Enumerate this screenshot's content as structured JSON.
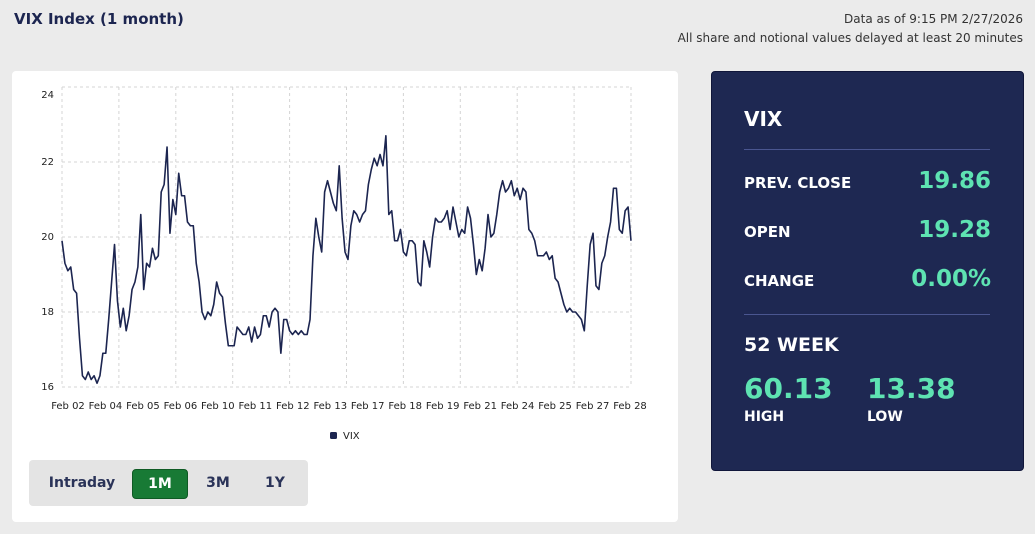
{
  "header": {
    "title": "VIX Index (1 month)",
    "timestamp": "Data as of 9:15 PM 2/27/2026",
    "disclaimer": "All share and notional values delayed at least 20 minutes"
  },
  "chart_data": {
    "type": "line",
    "series": [
      {
        "name": "VIX",
        "color": "#1c2550",
        "values": [
          19.9,
          19.3,
          19.1,
          19.2,
          18.6,
          18.5,
          17.3,
          16.3,
          16.2,
          16.4,
          16.2,
          16.3,
          16.1,
          16.3,
          16.9,
          16.9,
          17.8,
          18.8,
          19.8,
          18.3,
          17.6,
          18.1,
          17.5,
          17.9,
          18.6,
          18.8,
          19.2,
          20.6,
          18.6,
          19.3,
          19.2,
          19.7,
          19.4,
          19.5,
          21.2,
          21.4,
          22.4,
          20.1,
          21.0,
          20.6,
          21.7,
          21.1,
          21.1,
          20.4,
          20.3,
          20.3,
          19.3,
          18.8,
          18.0,
          17.8,
          18.0,
          17.9,
          18.2,
          18.8,
          18.5,
          18.4,
          17.7,
          17.1,
          17.1,
          17.1,
          17.6,
          17.5,
          17.4,
          17.4,
          17.6,
          17.2,
          17.6,
          17.3,
          17.4,
          17.9,
          17.9,
          17.6,
          18.0,
          18.1,
          18.0,
          16.9,
          17.8,
          17.8,
          17.5,
          17.4,
          17.5,
          17.4,
          17.5,
          17.4,
          17.4,
          17.8,
          19.5,
          20.5,
          20.0,
          19.6,
          21.2,
          21.5,
          21.2,
          20.9,
          20.7,
          21.9,
          20.5,
          19.6,
          19.4,
          20.3,
          20.7,
          20.6,
          20.4,
          20.6,
          20.7,
          21.4,
          21.8,
          22.1,
          21.9,
          22.2,
          21.9,
          22.7,
          20.6,
          20.7,
          19.9,
          19.9,
          20.2,
          19.6,
          19.5,
          19.9,
          19.9,
          19.8,
          18.8,
          18.7,
          19.9,
          19.6,
          19.2,
          20.0,
          20.5,
          20.4,
          20.4,
          20.5,
          20.7,
          20.2,
          20.8,
          20.4,
          20.0,
          20.2,
          20.1,
          20.8,
          20.5,
          19.8,
          19.0,
          19.4,
          19.1,
          19.7,
          20.6,
          20.0,
          20.1,
          20.6,
          21.2,
          21.5,
          21.2,
          21.3,
          21.5,
          21.1,
          21.3,
          21.0,
          21.3,
          21.2,
          20.2,
          20.1,
          19.9,
          19.5,
          19.5,
          19.5,
          19.6,
          19.4,
          19.5,
          18.9,
          18.8,
          18.5,
          18.2,
          18.0,
          18.1,
          18.0,
          18.0,
          17.9,
          17.8,
          17.5,
          18.7,
          19.8,
          20.1,
          18.7,
          18.6,
          19.3,
          19.5,
          20.0,
          20.4,
          21.3,
          21.3,
          20.2,
          20.1,
          20.7,
          20.8,
          19.9
        ]
      }
    ],
    "ylim": [
      16,
      24
    ],
    "yticks": [
      16,
      18,
      20,
      22,
      24
    ],
    "xtick_labels": [
      "Feb 02",
      "Feb 04",
      "Feb 05",
      "Feb 06",
      "Feb 10",
      "Feb 11",
      "Feb 12",
      "Feb 13",
      "Feb 17",
      "Feb 18",
      "Feb 19",
      "Feb 21",
      "Feb 24",
      "Feb 25",
      "Feb 27",
      "Feb 28"
    ],
    "grid": true
  },
  "range_buttons": {
    "options": [
      "Intraday",
      "1M",
      "3M",
      "1Y"
    ],
    "selected_index": 1
  },
  "summary": {
    "symbol": "VIX",
    "rows": [
      {
        "label": "PREV. CLOSE",
        "value": "19.86"
      },
      {
        "label": "OPEN",
        "value": "19.28"
      },
      {
        "label": "CHANGE",
        "value": "0.00%"
      }
    ],
    "week52": {
      "title": "52 WEEK",
      "high": {
        "value": "60.13",
        "label": "HIGH"
      },
      "low": {
        "value": "13.38",
        "label": "LOW"
      }
    }
  }
}
